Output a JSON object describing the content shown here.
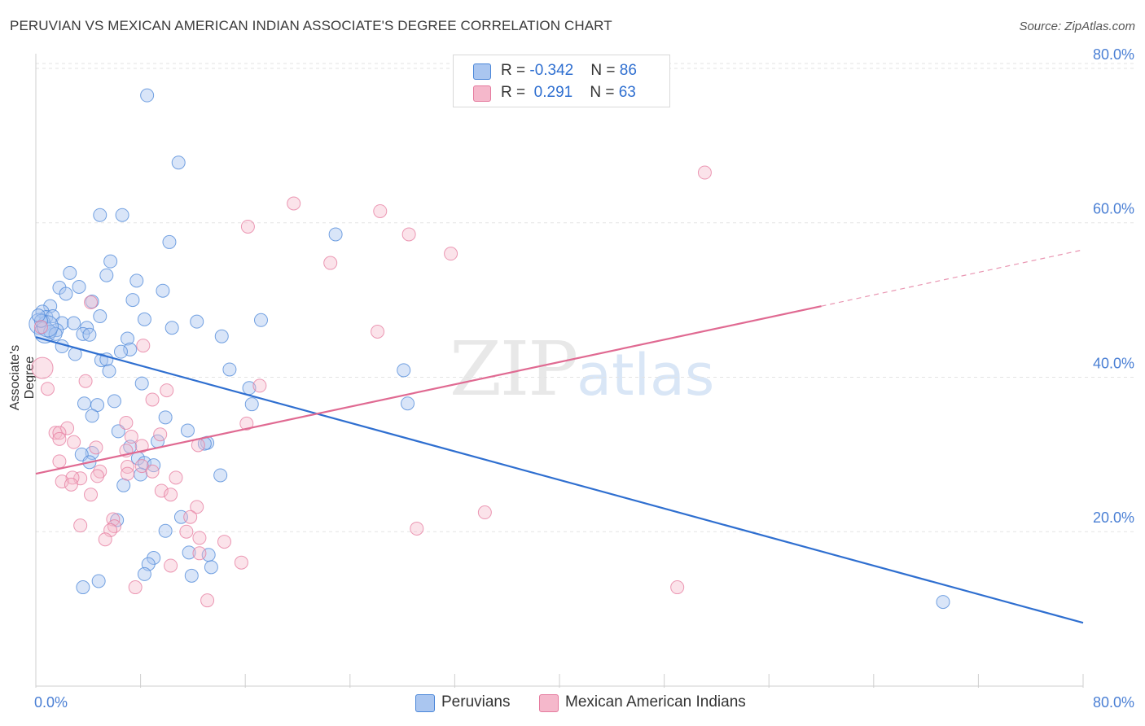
{
  "header": {
    "title": "PERUVIAN VS MEXICAN AMERICAN INDIAN ASSOCIATE'S DEGREE CORRELATION CHART",
    "source": "Source: ZipAtlas.com"
  },
  "watermark": {
    "zip": "ZIP",
    "atlas": "atlas"
  },
  "legend_top": {
    "rows": [
      {
        "r_label": "R = ",
        "r_value": "-0.342",
        "n_label": "N = ",
        "n_value": "86",
        "color": "#aac6f0"
      },
      {
        "r_label": "R = ",
        "r_value": " 0.291",
        "n_label": "N = ",
        "n_value": "63",
        "color": "#f5b8cb"
      }
    ]
  },
  "legend_bottom": {
    "items": [
      {
        "label": "Peruvians",
        "color": "#aac6f0"
      },
      {
        "label": "Mexican American Indians",
        "color": "#f5b8cb"
      }
    ]
  },
  "chart_data": {
    "type": "scatter",
    "title": "PERUVIAN VS MEXICAN AMERICAN INDIAN ASSOCIATE'S DEGREE CORRELATION CHART",
    "xlabel": "",
    "ylabel": "Associate's Degree",
    "xlim": [
      0,
      80
    ],
    "ylim": [
      0,
      84
    ],
    "x_tick_labels": [
      "0.0%",
      "80.0%"
    ],
    "y_ticks": [
      20,
      40,
      60,
      80
    ],
    "y_tick_labels": [
      "20.0%",
      "40.0%",
      "60.0%",
      "80.0%"
    ],
    "grid": true,
    "legend_position": "top-center",
    "colors": {
      "peruvians": "#4a86d8",
      "mexican_american_indians": "#e57a9e",
      "peruvians_line": "#2f6fd0",
      "mai_line": "#e06a92"
    },
    "series": [
      {
        "name": "Peruvians",
        "R": -0.342,
        "N": 86,
        "trend": {
          "x0": 0,
          "y0": 45.2,
          "x1": 80,
          "y1": 8.2
        },
        "points": [
          [
            8.5,
            76.5
          ],
          [
            10.9,
            67.8
          ],
          [
            6.6,
            61.0
          ],
          [
            4.9,
            61.0
          ],
          [
            22.9,
            58.5
          ],
          [
            10.2,
            57.5
          ],
          [
            5.7,
            55.0
          ],
          [
            2.6,
            53.5
          ],
          [
            5.4,
            53.2
          ],
          [
            7.7,
            52.5
          ],
          [
            1.8,
            51.6
          ],
          [
            3.3,
            51.7
          ],
          [
            2.3,
            50.8
          ],
          [
            9.7,
            51.2
          ],
          [
            4.3,
            49.8
          ],
          [
            7.4,
            50.0
          ],
          [
            1.1,
            49.2
          ],
          [
            0.5,
            48.5
          ],
          [
            0.8,
            47.8
          ],
          [
            1.3,
            47.9
          ],
          [
            4.9,
            47.9
          ],
          [
            8.3,
            47.5
          ],
          [
            12.3,
            47.2
          ],
          [
            17.2,
            47.4
          ],
          [
            2.0,
            47.0
          ],
          [
            2.9,
            47.0
          ],
          [
            0.3,
            46.9
          ],
          [
            1.6,
            46.1
          ],
          [
            3.9,
            46.4
          ],
          [
            10.4,
            46.4
          ],
          [
            0.7,
            45.8
          ],
          [
            3.6,
            45.6
          ],
          [
            1.1,
            45.9
          ],
          [
            1.5,
            45.6
          ],
          [
            0.9,
            46.6
          ],
          [
            0.4,
            47.3
          ],
          [
            0.2,
            48.0
          ],
          [
            4.1,
            45.5
          ],
          [
            7.0,
            45.0
          ],
          [
            14.2,
            45.3
          ],
          [
            2.0,
            44.0
          ],
          [
            7.2,
            43.6
          ],
          [
            6.5,
            43.3
          ],
          [
            3.0,
            43.0
          ],
          [
            5.0,
            42.2
          ],
          [
            5.4,
            42.3
          ],
          [
            5.6,
            40.8
          ],
          [
            14.8,
            41.0
          ],
          [
            28.1,
            40.9
          ],
          [
            8.1,
            39.2
          ],
          [
            16.3,
            38.6
          ],
          [
            3.7,
            36.6
          ],
          [
            6.0,
            36.9
          ],
          [
            4.7,
            36.4
          ],
          [
            16.5,
            36.5
          ],
          [
            28.4,
            36.6
          ],
          [
            4.3,
            35.0
          ],
          [
            9.9,
            34.8
          ],
          [
            6.3,
            33.0
          ],
          [
            11.6,
            33.1
          ],
          [
            13.1,
            31.5
          ],
          [
            12.9,
            31.4
          ],
          [
            4.3,
            30.2
          ],
          [
            7.2,
            31.0
          ],
          [
            9.3,
            31.7
          ],
          [
            3.5,
            30.0
          ],
          [
            7.8,
            29.5
          ],
          [
            4.1,
            29.0
          ],
          [
            8.3,
            28.9
          ],
          [
            9.0,
            28.6
          ],
          [
            8.0,
            27.4
          ],
          [
            14.1,
            27.3
          ],
          [
            6.7,
            26.0
          ],
          [
            11.1,
            21.9
          ],
          [
            6.2,
            21.5
          ],
          [
            9.9,
            20.1
          ],
          [
            9.0,
            16.6
          ],
          [
            8.6,
            15.8
          ],
          [
            13.2,
            17.0
          ],
          [
            11.9,
            14.3
          ],
          [
            69.3,
            10.9
          ],
          [
            8.3,
            14.5
          ],
          [
            4.8,
            13.6
          ],
          [
            11.7,
            17.3
          ],
          [
            13.4,
            15.4
          ],
          [
            3.6,
            12.8
          ]
        ]
      },
      {
        "name": "Mexican American Indians",
        "R": 0.291,
        "N": 63,
        "trend": {
          "x0": 0,
          "y0": 27.5,
          "x1": 60,
          "y1": 49.2,
          "dashed_to_x": 80,
          "dashed_to_y": 56.5
        },
        "points": [
          [
            51.1,
            66.5
          ],
          [
            19.7,
            62.5
          ],
          [
            26.3,
            61.5
          ],
          [
            16.2,
            59.5
          ],
          [
            28.5,
            58.5
          ],
          [
            31.7,
            56.0
          ],
          [
            22.5,
            54.8
          ],
          [
            4.2,
            49.7
          ],
          [
            0.4,
            46.5
          ],
          [
            26.1,
            45.9
          ],
          [
            8.2,
            44.1
          ],
          [
            0.5,
            41.2
          ],
          [
            3.8,
            39.5
          ],
          [
            17.1,
            38.9
          ],
          [
            0.9,
            38.5
          ],
          [
            10.0,
            38.3
          ],
          [
            8.9,
            37.1
          ],
          [
            16.1,
            34.0
          ],
          [
            6.9,
            34.1
          ],
          [
            2.4,
            33.4
          ],
          [
            1.5,
            32.8
          ],
          [
            1.8,
            32.8
          ],
          [
            7.3,
            32.3
          ],
          [
            9.5,
            32.6
          ],
          [
            1.8,
            32.0
          ],
          [
            2.9,
            31.6
          ],
          [
            12.4,
            31.2
          ],
          [
            4.6,
            30.9
          ],
          [
            6.9,
            30.5
          ],
          [
            8.1,
            31.1
          ],
          [
            1.8,
            29.1
          ],
          [
            8.1,
            28.5
          ],
          [
            7.0,
            28.4
          ],
          [
            4.9,
            27.8
          ],
          [
            8.9,
            27.8
          ],
          [
            7.0,
            27.5
          ],
          [
            4.7,
            27.2
          ],
          [
            3.4,
            26.9
          ],
          [
            2.8,
            27.0
          ],
          [
            10.7,
            27.0
          ],
          [
            2.0,
            26.5
          ],
          [
            2.7,
            26.1
          ],
          [
            9.6,
            25.3
          ],
          [
            10.3,
            24.8
          ],
          [
            4.2,
            24.8
          ],
          [
            12.3,
            23.2
          ],
          [
            34.3,
            22.5
          ],
          [
            11.8,
            21.9
          ],
          [
            5.9,
            21.6
          ],
          [
            6.0,
            20.7
          ],
          [
            3.4,
            20.8
          ],
          [
            5.7,
            20.2
          ],
          [
            29.1,
            20.4
          ],
          [
            11.5,
            20.0
          ],
          [
            12.5,
            19.2
          ],
          [
            5.3,
            19.0
          ],
          [
            14.4,
            18.7
          ],
          [
            12.5,
            17.2
          ],
          [
            10.3,
            15.6
          ],
          [
            15.7,
            16.0
          ],
          [
            7.6,
            12.8
          ],
          [
            49.0,
            12.8
          ],
          [
            13.1,
            11.1
          ]
        ]
      }
    ]
  }
}
